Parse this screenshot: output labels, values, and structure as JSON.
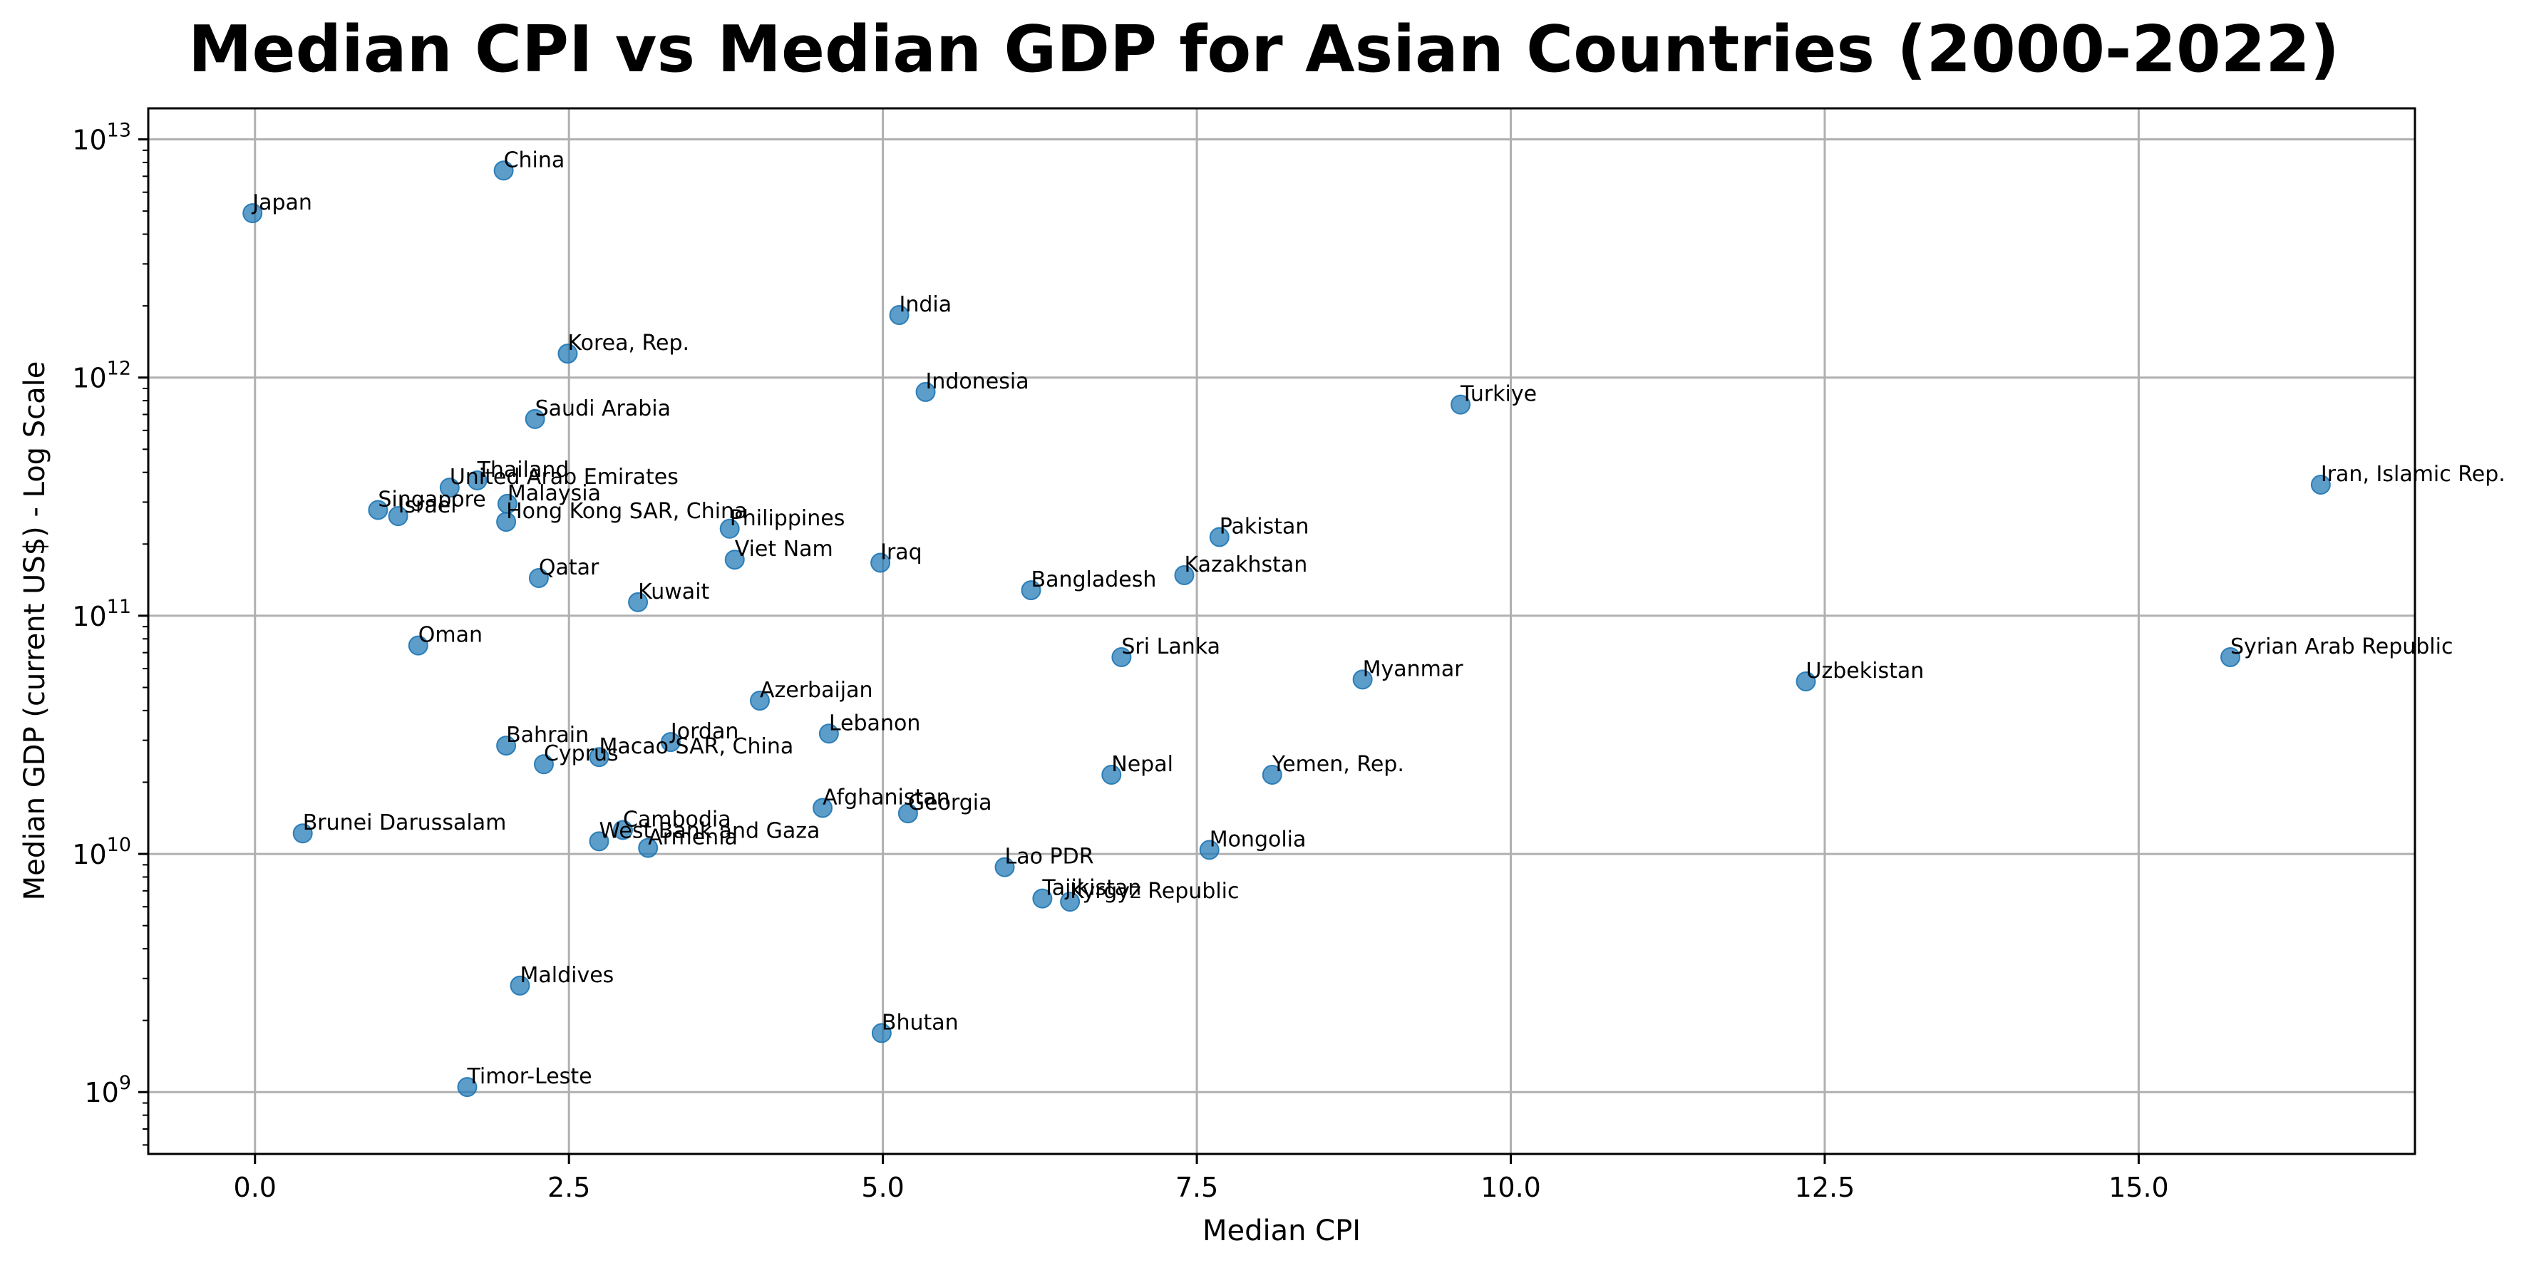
{
  "chart_data": {
    "type": "scatter",
    "title": "Median CPI vs Median GDP for Asian Countries (2000-2022)",
    "xlabel": "Median CPI",
    "ylabel": "Median GDP (current US$) - Log Scale",
    "xlim": [
      -0.85,
      17.2
    ],
    "ylim": [
      550000000.0,
      13500000000000.0
    ],
    "yscale": "log",
    "grid": true,
    "x_ticks": [
      0.0,
      2.5,
      5.0,
      7.5,
      10.0,
      12.5,
      15.0
    ],
    "x_tick_labels": [
      "0.0",
      "2.5",
      "5.0",
      "7.5",
      "10.0",
      "12.5",
      "15.0"
    ],
    "y_ticks": [
      1000000000.0,
      10000000000.0,
      100000000000.0,
      1000000000000.0,
      10000000000000.0
    ],
    "y_tick_labels": [
      {
        "base": "10",
        "exp": "9"
      },
      {
        "base": "10",
        "exp": "10"
      },
      {
        "base": "10",
        "exp": "11"
      },
      {
        "base": "10",
        "exp": "12"
      },
      {
        "base": "10",
        "exp": "13"
      }
    ],
    "color": "#1f77b4",
    "points": [
      {
        "label": "Japan",
        "x": -0.02,
        "y": 4900000000000.0
      },
      {
        "label": "China",
        "x": 1.98,
        "y": 7400000000000.0
      },
      {
        "label": "India",
        "x": 5.13,
        "y": 1830000000000.0
      },
      {
        "label": "Korea, Rep.",
        "x": 2.49,
        "y": 1260000000000.0
      },
      {
        "label": "Indonesia",
        "x": 5.34,
        "y": 870000000000.0
      },
      {
        "label": "Turkiye",
        "x": 9.6,
        "y": 770000000000.0
      },
      {
        "label": "Saudi Arabia",
        "x": 2.23,
        "y": 670000000000.0
      },
      {
        "label": "Iran, Islamic Rep.",
        "x": 16.45,
        "y": 355000000000.0
      },
      {
        "label": "Thailand",
        "x": 1.77,
        "y": 370000000000.0
      },
      {
        "label": "United Arab Emirates",
        "x": 1.55,
        "y": 345000000000.0
      },
      {
        "label": "Malaysia",
        "x": 2.01,
        "y": 295000000000.0
      },
      {
        "label": "Singapore",
        "x": 0.98,
        "y": 278000000000.0
      },
      {
        "label": "Israel",
        "x": 1.14,
        "y": 262000000000.0
      },
      {
        "label": "Hong Kong SAR, China",
        "x": 2.0,
        "y": 248000000000.0
      },
      {
        "label": "Philippines",
        "x": 3.78,
        "y": 232000000000.0
      },
      {
        "label": "Pakistan",
        "x": 7.68,
        "y": 214000000000.0
      },
      {
        "label": "Viet Nam",
        "x": 3.82,
        "y": 172000000000.0
      },
      {
        "label": "Iraq",
        "x": 4.98,
        "y": 167000000000.0
      },
      {
        "label": "Kazakhstan",
        "x": 7.4,
        "y": 148000000000.0
      },
      {
        "label": "Qatar",
        "x": 2.26,
        "y": 144000000000.0
      },
      {
        "label": "Bangladesh",
        "x": 6.18,
        "y": 128000000000.0
      },
      {
        "label": "Kuwait",
        "x": 3.05,
        "y": 114000000000.0
      },
      {
        "label": "Oman",
        "x": 1.3,
        "y": 75000000000.0
      },
      {
        "label": "Sri Lanka",
        "x": 6.9,
        "y": 67000000000.0
      },
      {
        "label": "Syrian Arab Republic",
        "x": 15.73,
        "y": 67000000000.0
      },
      {
        "label": "Myanmar",
        "x": 8.82,
        "y": 54000000000.0
      },
      {
        "label": "Uzbekistan",
        "x": 12.35,
        "y": 53000000000.0
      },
      {
        "label": "Azerbaijan",
        "x": 4.02,
        "y": 44000000000.0
      },
      {
        "label": "Lebanon",
        "x": 4.57,
        "y": 32000000000.0
      },
      {
        "label": "Jordan",
        "x": 3.31,
        "y": 29500000000.0
      },
      {
        "label": "Bahrain",
        "x": 2.0,
        "y": 28500000000.0
      },
      {
        "label": "Macao SAR, China",
        "x": 2.74,
        "y": 25500000000.0
      },
      {
        "label": "Cyprus",
        "x": 2.3,
        "y": 23800000000.0
      },
      {
        "label": "Nepal",
        "x": 6.82,
        "y": 21500000000.0
      },
      {
        "label": "Yemen, Rep.",
        "x": 8.1,
        "y": 21500000000.0
      },
      {
        "label": "Afghanistan",
        "x": 4.52,
        "y": 15600000000.0
      },
      {
        "label": "Georgia",
        "x": 5.2,
        "y": 14800000000.0
      },
      {
        "label": "Cambodia",
        "x": 2.93,
        "y": 12600000000.0
      },
      {
        "label": "Brunei Darussalam",
        "x": 0.38,
        "y": 12200000000.0
      },
      {
        "label": "West Bank and Gaza",
        "x": 2.74,
        "y": 11300000000.0
      },
      {
        "label": "Armenia",
        "x": 3.13,
        "y": 10600000000.0
      },
      {
        "label": "Mongolia",
        "x": 7.6,
        "y": 10400000000.0
      },
      {
        "label": "Lao PDR",
        "x": 5.97,
        "y": 8800000000.0
      },
      {
        "label": "Tajikistan",
        "x": 6.27,
        "y": 6500000000.0
      },
      {
        "label": "Kyrgyz Republic",
        "x": 6.49,
        "y": 6300000000.0
      },
      {
        "label": "Maldives",
        "x": 2.11,
        "y": 2800000000.0
      },
      {
        "label": "Bhutan",
        "x": 4.99,
        "y": 1770000000.0
      },
      {
        "label": "Timor-Leste",
        "x": 1.69,
        "y": 1050000000.0
      }
    ]
  }
}
